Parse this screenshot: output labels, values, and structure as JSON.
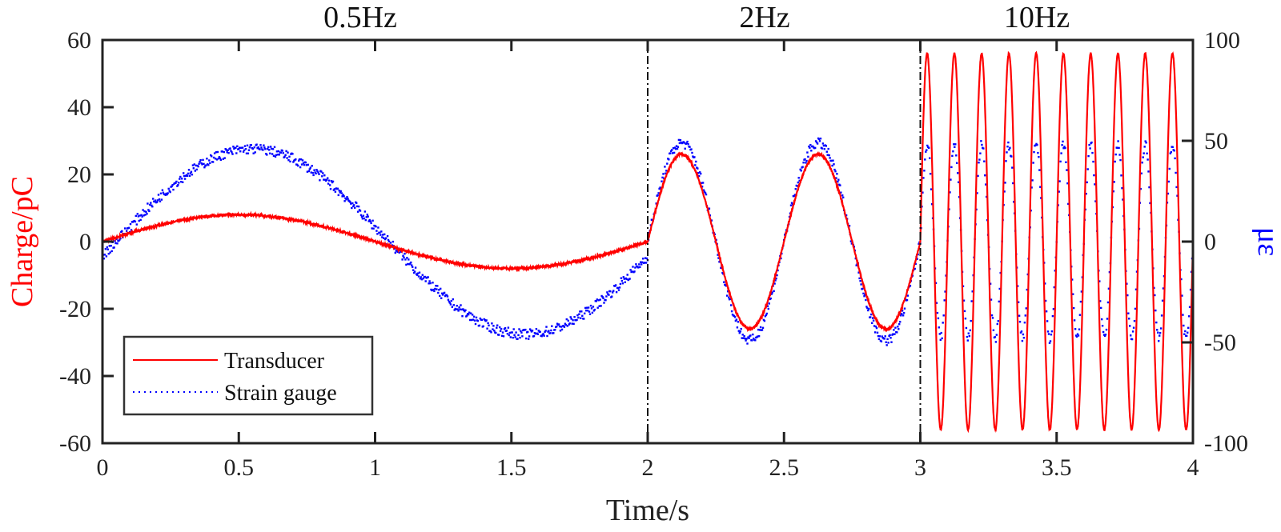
{
  "chart_data": {
    "type": "line",
    "title": "",
    "xlabel": "Time/s",
    "ylabel_left": "Charge/pC",
    "ylabel_right": "με",
    "xlim": [
      0,
      4
    ],
    "ylim_left": [
      -60,
      60
    ],
    "ylim_right": [
      -100,
      100
    ],
    "x_ticks": [
      "0",
      "0.5",
      "1",
      "1.5",
      "2",
      "2.5",
      "3",
      "3.5",
      "4"
    ],
    "y_ticks_left": [
      "60",
      "40",
      "20",
      "0",
      "-20",
      "-40",
      "-60"
    ],
    "y_ticks_right": [
      "100",
      "50",
      "0",
      "-50",
      "-100"
    ],
    "segment_labels": [
      {
        "text": "0.5Hz",
        "x": 1.0
      },
      {
        "text": "2Hz",
        "x": 2.5
      },
      {
        "text": "10Hz",
        "x": 3.5
      }
    ],
    "segment_dividers": [
      2,
      3
    ],
    "grid": false,
    "legend_position": "lower left",
    "segments": [
      {
        "t_start": 0,
        "t_end": 2,
        "frequency_hz": 0.5,
        "transducer_amplitude_pC": 8,
        "strain_amplitude_ue": 46
      },
      {
        "t_start": 2,
        "t_end": 3,
        "frequency_hz": 2,
        "transducer_amplitude_pC": 26,
        "strain_amplitude_ue": 49
      },
      {
        "t_start": 3,
        "t_end": 4,
        "frequency_hz": 10,
        "transducer_amplitude_pC": 56,
        "strain_amplitude_ue": 48
      }
    ],
    "series": [
      {
        "name": "Transducer",
        "axis": "left",
        "color": "#ff0000",
        "style": "solid",
        "key_points": [
          {
            "x": 0,
            "y": 0
          },
          {
            "x": 0.5,
            "y": 8
          },
          {
            "x": 1.0,
            "y": 0
          },
          {
            "x": 1.5,
            "y": -8
          },
          {
            "x": 2.0,
            "y": 0
          },
          {
            "x": 2.125,
            "y": 26
          },
          {
            "x": 2.375,
            "y": -26
          },
          {
            "x": 2.625,
            "y": 26
          },
          {
            "x": 2.875,
            "y": -26
          },
          {
            "x": 3.0,
            "y": 0
          },
          {
            "x": 3.025,
            "y": 58
          },
          {
            "x": 3.075,
            "y": -54
          },
          {
            "x": 3.525,
            "y": 56
          },
          {
            "x": 3.575,
            "y": -56
          },
          {
            "x": 4.0,
            "y": 0
          }
        ]
      },
      {
        "name": "Strain gauge",
        "axis": "right",
        "color": "#0000ff",
        "style": "dotted",
        "key_points": [
          {
            "x": 0,
            "y": 0
          },
          {
            "x": 0.55,
            "y": 46
          },
          {
            "x": 1.05,
            "y": 0
          },
          {
            "x": 1.55,
            "y": -48
          },
          {
            "x": 2.0,
            "y": -5
          },
          {
            "x": 2.125,
            "y": 49
          },
          {
            "x": 2.375,
            "y": -51
          },
          {
            "x": 2.625,
            "y": 49
          },
          {
            "x": 2.875,
            "y": -51
          },
          {
            "x": 3.0,
            "y": 0
          },
          {
            "x": 3.025,
            "y": 48
          },
          {
            "x": 3.075,
            "y": -49
          },
          {
            "x": 4.0,
            "y": 0
          }
        ]
      }
    ]
  },
  "legend": {
    "items": [
      {
        "label": "Transducer",
        "color": "#ff0000",
        "style": "solid"
      },
      {
        "label": "Strain gauge",
        "color": "#0000ff",
        "style": "dotted"
      }
    ]
  },
  "colors": {
    "left_axis_label": "#ff0000",
    "right_axis_label": "#0000ff",
    "axis": "#222222"
  }
}
